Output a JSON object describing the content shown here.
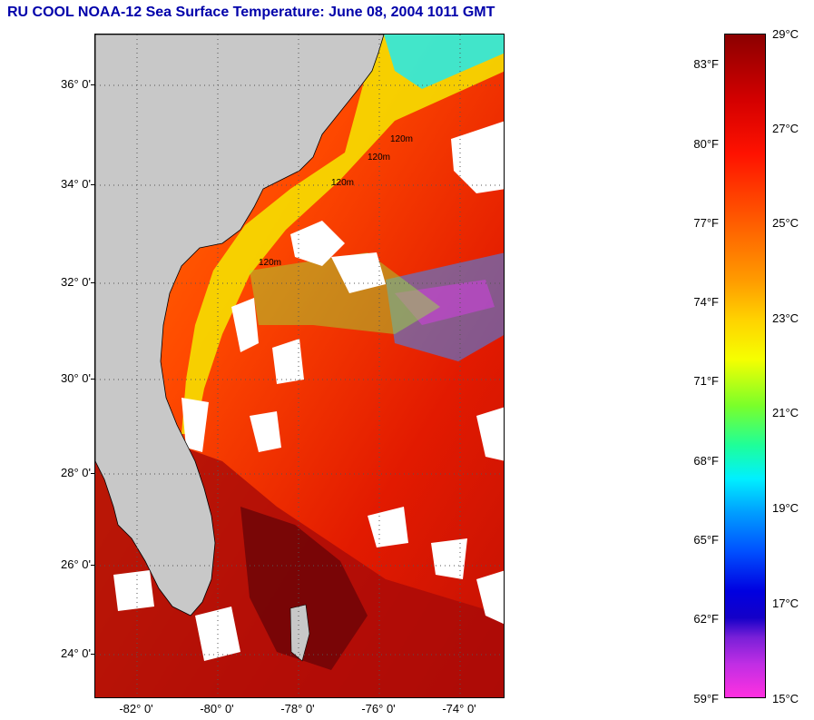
{
  "title": "RU COOL  NOAA-12  Sea Surface Temperature:  June 08, 2004 1011 GMT",
  "colors": {
    "land": "#c8c8c8",
    "cloud": "#ffffff",
    "title_text": "#0000aa"
  },
  "map": {
    "latitude_labels": [
      "36° 0'",
      "34° 0'",
      "32° 0'",
      "30° 0'",
      "28° 0'",
      "26° 0'",
      "24° 0'"
    ],
    "longitude_labels": [
      "-82° 0'",
      "-80° 0'",
      "-78° 0'",
      "-76° 0'",
      "-74° 0'"
    ],
    "coast_labels": [
      "120m",
      "120m",
      "120m",
      "120m"
    ]
  },
  "colorbar": {
    "fahrenheit_labels": [
      "83°F",
      "80°F",
      "77°F",
      "74°F",
      "71°F",
      "68°F",
      "65°F",
      "62°F",
      "59°F"
    ],
    "celsius_labels": [
      "29°C",
      "27°C",
      "25°C",
      "23°C",
      "21°C",
      "19°C",
      "17°C",
      "15°C"
    ]
  }
}
